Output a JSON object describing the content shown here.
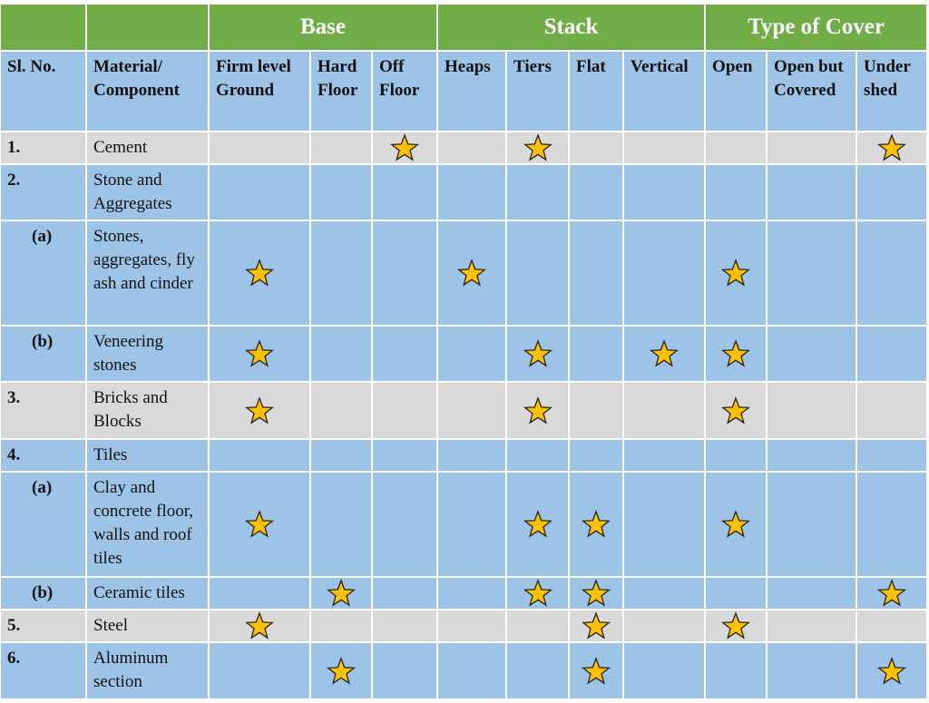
{
  "header": {
    "columns": [
      "Sl. No.",
      "Material/ Component"
    ],
    "groups": [
      {
        "label": "Base",
        "columns": [
          "Firm level Ground",
          "Hard Floor",
          "Off Floor"
        ]
      },
      {
        "label": "Stack",
        "columns": [
          "Heaps",
          "Tiers",
          "Flat",
          "Vertical"
        ]
      },
      {
        "label": "Type of Cover",
        "columns": [
          "Open",
          "Open but Covered",
          "Under shed"
        ]
      }
    ]
  },
  "table": {
    "rows": [
      {
        "no": "1.",
        "item": "Cement",
        "shaded": true,
        "marks": [
          false,
          false,
          true,
          false,
          true,
          false,
          false,
          false,
          false,
          true
        ]
      },
      {
        "no": "2.",
        "item": "Stone and Aggregates",
        "shaded": false,
        "marks": [
          false,
          false,
          false,
          false,
          false,
          false,
          false,
          false,
          false,
          false
        ]
      },
      {
        "no": "(a)",
        "item": "Stones, aggregates, fly ash and cinder",
        "shaded": false,
        "marks": [
          true,
          false,
          false,
          true,
          false,
          false,
          false,
          true,
          false,
          false
        ]
      },
      {
        "no": "(b)",
        "item": "Veneering stones",
        "shaded": false,
        "marks": [
          true,
          false,
          false,
          false,
          true,
          false,
          true,
          true,
          false,
          false
        ]
      },
      {
        "no": "3.",
        "item": "Bricks and Blocks",
        "shaded": true,
        "marks": [
          true,
          false,
          false,
          false,
          true,
          false,
          false,
          true,
          false,
          false
        ]
      },
      {
        "no": "4.",
        "item": "Tiles",
        "shaded": false,
        "marks": [
          false,
          false,
          false,
          false,
          false,
          false,
          false,
          false,
          false,
          false
        ]
      },
      {
        "no": "(a)",
        "item": "Clay and concrete floor, walls and roof tiles",
        "shaded": false,
        "marks": [
          true,
          false,
          false,
          false,
          true,
          true,
          false,
          true,
          false,
          false
        ]
      },
      {
        "no": "(b)",
        "item": "Ceramic tiles",
        "shaded": false,
        "marks": [
          false,
          true,
          false,
          false,
          true,
          true,
          false,
          false,
          false,
          true
        ]
      },
      {
        "no": "5.",
        "item": "Steel",
        "shaded": true,
        "marks": [
          true,
          false,
          false,
          false,
          false,
          true,
          false,
          true,
          false,
          false
        ]
      },
      {
        "no": "6.",
        "item": "Aluminum section",
        "shaded": false,
        "marks": [
          false,
          true,
          false,
          false,
          false,
          true,
          false,
          false,
          false,
          true
        ]
      }
    ]
  }
}
